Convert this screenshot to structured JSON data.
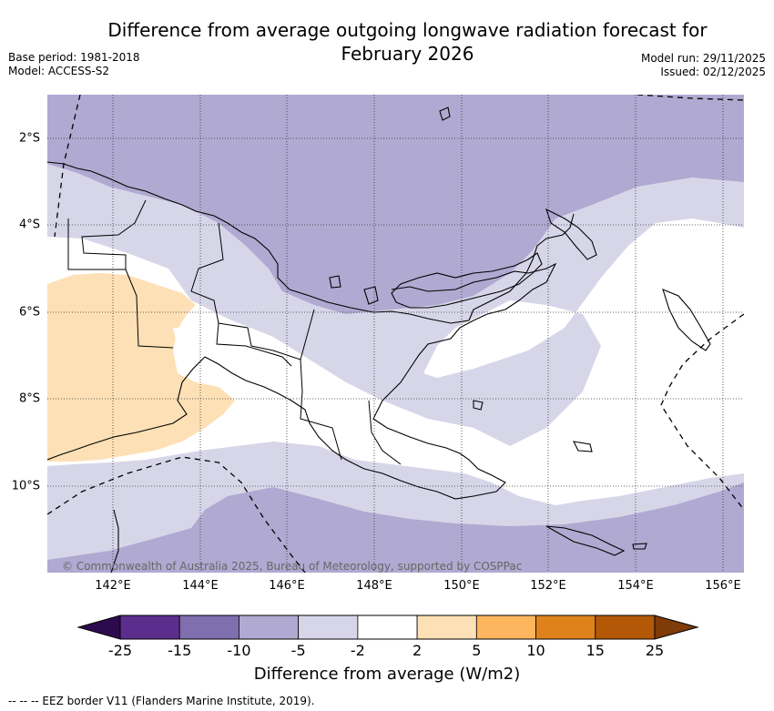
{
  "title_line1": "Difference from average outgoing longwave radiation forecast for",
  "title_line2": "February 2026",
  "base_period": "Base period: 1981-2018",
  "model": "Model: ACCESS-S2",
  "model_run": "Model run: 29/11/2025",
  "issued": "Issued: 02/12/2025",
  "credit": "© Commonwealth of Australia 2025, Bureau of Meteorology, supported by COSPPac",
  "lon_labels": [
    "142°E",
    "144°E",
    "146°E",
    "148°E",
    "150°E",
    "152°E",
    "154°E",
    "156°E"
  ],
  "lat_labels": [
    "2°S",
    "4°S",
    "6°S",
    "8°S",
    "10°S"
  ],
  "colorbar": {
    "ticks": [
      "-25",
      "-15",
      "-10",
      "-5",
      "-2",
      "2",
      "5",
      "10",
      "15",
      "25"
    ],
    "colors": [
      "#2d0a4e",
      "#5b2d8c",
      "#7f6fae",
      "#b0a9d1",
      "#d7d6e9",
      "#ffffff",
      "#fde0b5",
      "#fdb55e",
      "#e0821c",
      "#b35806",
      "#7f3b08"
    ],
    "label": "Difference from average (W/m2)"
  },
  "footnote": "--  --  -- EEZ border V11 (Flanders Marine Institute, 2019)."
}
